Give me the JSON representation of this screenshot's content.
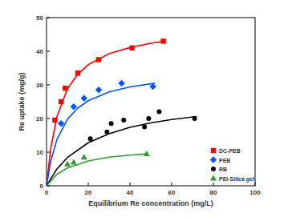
{
  "chart_data": {
    "type": "scatter",
    "xlabel": "Equilibrium Re concentration (mg/L)",
    "ylabel": "Re uptake (mg/g)",
    "xlim": [
      0,
      100
    ],
    "xticks": [
      0,
      20,
      40,
      60,
      80,
      100
    ],
    "ylim": [
      0,
      50
    ],
    "yticks": [
      0,
      10,
      20,
      30,
      40,
      50
    ],
    "grid": false,
    "legend": "lower right",
    "series": [
      {
        "name": "DC-PEB",
        "color": "#ff0000",
        "marker": "square",
        "x": [
          4,
          7,
          9,
          15,
          25,
          41,
          56
        ],
        "values": [
          19.5,
          25,
          29,
          33.5,
          37.5,
          41,
          43
        ],
        "curve": {
          "x": [
            0,
            2,
            5,
            10,
            15,
            20,
            30,
            40,
            50,
            57
          ],
          "values": [
            0,
            11.1,
            20.6,
            28.8,
            33.2,
            36,
            39.3,
            41.1,
            42.4,
            43
          ]
        }
      },
      {
        "name": "PEB",
        "color": "#0055ff",
        "marker": "diamond",
        "x": [
          7,
          13,
          18,
          25,
          36,
          51
        ],
        "values": [
          18.5,
          23.5,
          26,
          28.5,
          30.5,
          29.5
        ],
        "curve": {
          "x": [
            0,
            2,
            5,
            10,
            15,
            20,
            30,
            40,
            52
          ],
          "values": [
            0,
            7.2,
            13.8,
            19.8,
            23.1,
            25.3,
            27.9,
            29.4,
            30.5
          ]
        }
      },
      {
        "name": "RB",
        "color": "#000000",
        "marker": "circle",
        "x": [
          21,
          29,
          31,
          37,
          47,
          49,
          54,
          71
        ],
        "values": [
          14,
          16,
          18.5,
          19.5,
          17.5,
          20,
          22,
          20
        ],
        "curve": {
          "x": [
            0,
            5,
            10,
            20,
            30,
            40,
            50,
            60,
            72
          ],
          "values": [
            0,
            5,
            8.4,
            12.8,
            15.5,
            17.4,
            18.7,
            19.7,
            20.6
          ]
        }
      },
      {
        "name": "PEI-Silica gel",
        "color": "#2e9e2e",
        "marker": "triangle",
        "x": [
          10,
          13,
          18,
          48
        ],
        "values": [
          6.5,
          7,
          8.5,
          9.5
        ],
        "curve": {
          "x": [
            0,
            5,
            10,
            20,
            30,
            40,
            48
          ],
          "values": [
            0,
            3.4,
            5.3,
            7.4,
            8.5,
            9.1,
            9.5
          ]
        }
      }
    ]
  }
}
